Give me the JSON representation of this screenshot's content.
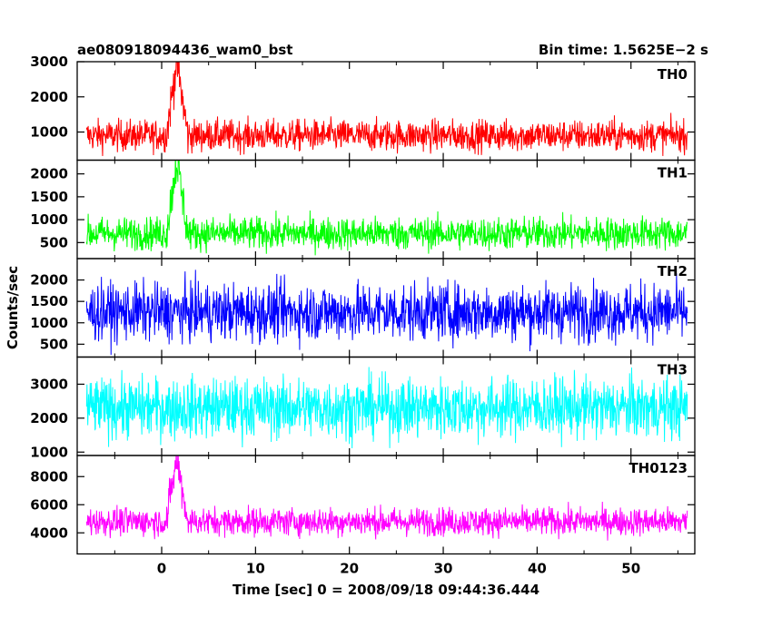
{
  "header": {
    "left_title": "ae080918094436_wam0_bst",
    "right_title": "Bin time: 1.5625E−2 s"
  },
  "chart_data": {
    "type": "line",
    "ylabel": "Counts/sec",
    "xlabel": "Time [sec] 0 = 2008/09/18 09:44:36.444",
    "xlim": [
      -9,
      56.8
    ],
    "x_data_range": [
      -8,
      56
    ],
    "x_ticks": [
      0,
      10,
      20,
      30,
      40,
      50
    ],
    "x_tick_labels": [
      "0",
      "10",
      "20",
      "30",
      "40",
      "50"
    ],
    "bin_time_s": 0.015625,
    "grid": false,
    "panels": [
      {
        "name": "TH0",
        "color": "#ff0000",
        "ylim": [
          200,
          3000
        ],
        "yticks": [
          1000,
          2000,
          3000
        ],
        "ytick_labels": [
          "1000",
          "2000",
          "3000"
        ],
        "baseline": 900,
        "noise_amplitude": 400,
        "burst": {
          "start": 0.5,
          "peak": 1.6,
          "end": 2.8,
          "peak_value": 3000
        },
        "x": [
          -8,
          -4,
          0,
          1,
          1.6,
          2,
          3,
          10,
          20,
          30,
          40,
          50,
          56
        ],
        "y": [
          900,
          900,
          1100,
          1700,
          3000,
          2500,
          1000,
          900,
          900,
          900,
          900,
          900,
          900
        ]
      },
      {
        "name": "TH1",
        "color": "#00ff00",
        "ylim": [
          150,
          2300
        ],
        "yticks": [
          500,
          1000,
          1500,
          2000
        ],
        "ytick_labels": [
          "500",
          "1000",
          "1500",
          "2000"
        ],
        "baseline": 700,
        "noise_amplitude": 320,
        "burst": {
          "start": 0.5,
          "peak": 1.6,
          "end": 2.8,
          "peak_value": 2300
        },
        "x": [
          -8,
          -4,
          0,
          1,
          1.6,
          2,
          3,
          10,
          20,
          30,
          40,
          50,
          56
        ],
        "y": [
          700,
          700,
          850,
          1300,
          2300,
          1800,
          750,
          700,
          700,
          700,
          700,
          700,
          700
        ]
      },
      {
        "name": "TH2",
        "color": "#0000ff",
        "ylim": [
          200,
          2500
        ],
        "yticks": [
          500,
          1000,
          1500,
          2000
        ],
        "ytick_labels": [
          "500",
          "1000",
          "1500",
          "2000"
        ],
        "baseline": 1250,
        "noise_amplitude": 600,
        "burst": null,
        "x": [
          -8,
          0,
          10,
          20,
          30,
          40,
          50,
          56
        ],
        "y": [
          1250,
          1250,
          1250,
          1250,
          1250,
          1250,
          1250,
          1250
        ]
      },
      {
        "name": "TH3",
        "color": "#00ffff",
        "ylim": [
          900,
          3800
        ],
        "yticks": [
          1000,
          2000,
          3000
        ],
        "ytick_labels": [
          "1000",
          "2000",
          "3000"
        ],
        "baseline": 2300,
        "noise_amplitude": 800,
        "burst": null,
        "x": [
          -8,
          0,
          10,
          20,
          30,
          40,
          50,
          56
        ],
        "y": [
          2300,
          2300,
          2300,
          2300,
          2300,
          2300,
          2300,
          2300
        ]
      },
      {
        "name": "TH0123",
        "color": "#ff00ff",
        "ylim": [
          2500,
          9500
        ],
        "yticks": [
          4000,
          6000,
          8000
        ],
        "ytick_labels": [
          "4000",
          "6000",
          "8000"
        ],
        "baseline": 4800,
        "noise_amplitude": 900,
        "burst": {
          "start": 0.5,
          "peak": 1.6,
          "end": 2.8,
          "peak_value": 9300
        },
        "x": [
          -8,
          -4,
          0,
          1,
          1.6,
          2,
          3,
          10,
          20,
          30,
          40,
          50,
          56
        ],
        "y": [
          4800,
          4800,
          5200,
          6500,
          9300,
          7800,
          5000,
          4800,
          4800,
          4800,
          4800,
          4800,
          4800
        ]
      }
    ]
  }
}
